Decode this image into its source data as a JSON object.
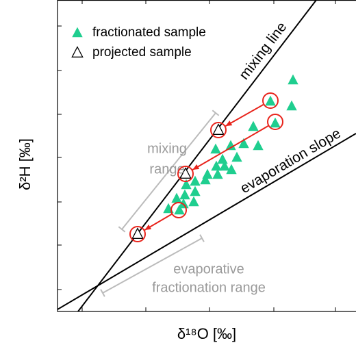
{
  "chart_data": {
    "type": "scatter",
    "x_label": "δ¹⁸O [‰]",
    "y_label": "δ²H [‰]",
    "xlim": [
      0,
      436
    ],
    "ylim": [
      0,
      455
    ],
    "xticks": [
      36,
      129,
      222,
      316,
      406
    ],
    "yticks": [
      32,
      97,
      160,
      225,
      288,
      352,
      417
    ],
    "series": [
      {
        "name": "fractionated sample",
        "color": "#1fce8f",
        "marker": "filled-triangle",
        "x": [
          344,
          342,
          311,
          318,
          286,
          272,
          293,
          253,
          231,
          262,
          241,
          232,
          244,
          234,
          254,
          219,
          216,
          201,
          188,
          201,
          186,
          174,
          199,
          184,
          178,
          162
        ],
        "y": [
          338,
          300,
          307,
          275,
          270,
          245,
          242,
          242,
          237,
          225,
          222,
          212,
          212,
          200,
          207,
          200,
          192,
          190,
          185,
          175,
          170,
          165,
          160,
          157,
          148,
          150
        ]
      },
      {
        "name": "projected sample",
        "color": "#000000",
        "marker": "open-triangle",
        "x": [
          235,
          187,
          117
        ],
        "y": [
          265,
          201,
          113
        ]
      }
    ],
    "arrows": [
      {
        "from_x": 311,
        "from_y": 308,
        "to_x": 235,
        "to_y": 265
      },
      {
        "from_x": 318,
        "from_y": 277,
        "to_x": 187,
        "to_y": 201
      },
      {
        "from_x": 177,
        "from_y": 148,
        "to_x": 117,
        "to_y": 113
      }
    ],
    "arrow_color": "#e8231b",
    "lines": [
      {
        "name": "mixing line",
        "x": [
          30,
          378
        ],
        "y": [
          0,
          455
        ]
      },
      {
        "name": "evaporation slope",
        "x": [
          0,
          436
        ],
        "y": [
          3,
          260
        ]
      }
    ],
    "ranges": [
      {
        "label": [
          "mixing",
          "range"
        ],
        "x": [
          94,
          231
        ],
        "y": [
          120,
          290
        ]
      },
      {
        "label": [
          "evaporative",
          "fractionation range"
        ],
        "x": [
          66,
          211
        ],
        "y": [
          27,
          107
        ]
      }
    ],
    "range_color": "#bbbbbb",
    "legend": "upper left"
  }
}
